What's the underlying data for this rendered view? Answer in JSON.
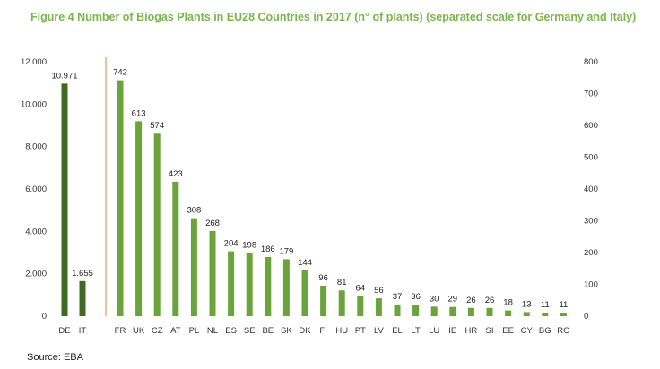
{
  "title": "Figure 4 Number of Biogas Plants in EU28 Countries in 2017 (n° of plants) (separated scale for Germany and Italy)",
  "source": "Source: EBA",
  "colors": {
    "left_bars": "#3e6a26",
    "right_bars": "#6aa43a",
    "separator": "#f0a97a",
    "title": "#7ab648"
  },
  "chart_data": [
    {
      "type": "bar",
      "categories": [
        "DE",
        "IT"
      ],
      "values": [
        10971,
        1655
      ],
      "data_labels": [
        "10.971",
        "1.655"
      ],
      "ylim": [
        0,
        12000
      ],
      "yticks": [
        "0",
        "2.000",
        "4.000",
        "6.000",
        "8.000",
        "10.000",
        "12.000"
      ],
      "axis": "left"
    },
    {
      "type": "bar",
      "categories": [
        "FR",
        "UK",
        "CZ",
        "AT",
        "PL",
        "NL",
        "ES",
        "SE",
        "BE",
        "SK",
        "DK",
        "FI",
        "HU",
        "PT",
        "LV",
        "EL",
        "LT",
        "LU",
        "IE",
        "HR",
        "SI",
        "EE",
        "CY",
        "BG",
        "RO"
      ],
      "values": [
        742,
        613,
        574,
        423,
        308,
        268,
        204,
        198,
        186,
        179,
        144,
        96,
        81,
        64,
        56,
        37,
        36,
        30,
        29,
        26,
        26,
        18,
        13,
        11,
        11
      ],
      "data_labels": [
        "742",
        "613",
        "574",
        "423",
        "308",
        "268",
        "204",
        "198",
        "186",
        "179",
        "144",
        "96",
        "81",
        "64",
        "56",
        "37",
        "36",
        "30",
        "29",
        "26",
        "26",
        "18",
        "13",
        "11",
        "11"
      ],
      "ylim": [
        0,
        800
      ],
      "yticks": [
        "0",
        "100",
        "200",
        "300",
        "400",
        "500",
        "600",
        "700",
        "800"
      ],
      "axis": "right"
    }
  ]
}
